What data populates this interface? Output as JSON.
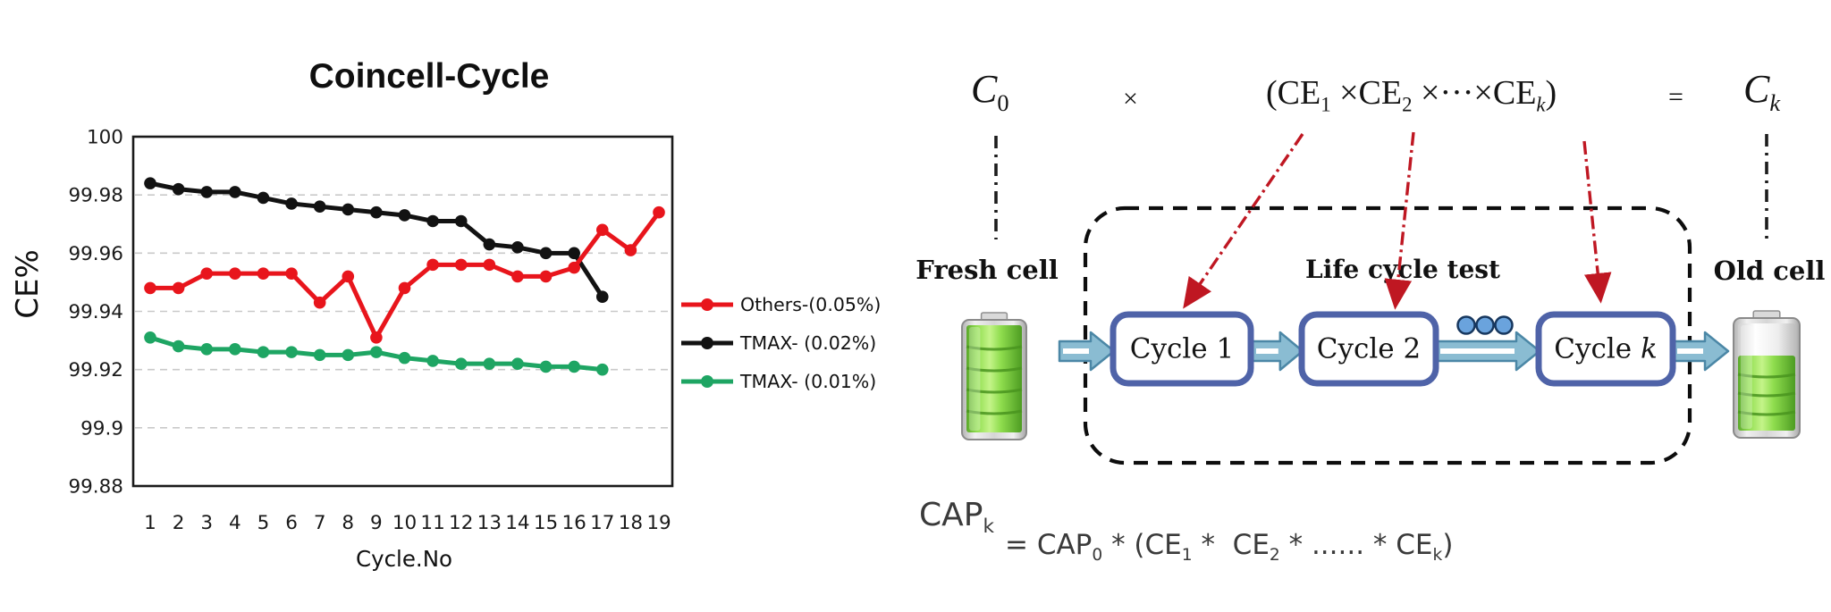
{
  "chart_data": {
    "type": "line",
    "title": "Coincell-Cycle",
    "xlabel": "Cycle.No",
    "ylabel": "CE%",
    "x": [
      1,
      2,
      3,
      4,
      5,
      6,
      7,
      8,
      9,
      10,
      11,
      12,
      13,
      14,
      15,
      16,
      17,
      18,
      19
    ],
    "ylim": [
      99.88,
      100
    ],
    "yticks": [
      100,
      99.98,
      99.96,
      99.94,
      99.92,
      99.9,
      99.88
    ],
    "ytick_labels": [
      "100",
      "99.98",
      "99.96",
      "99.94",
      "99.92",
      "99.9",
      "99.88"
    ],
    "grid": "horizontal-dashed",
    "legend_position": "right-center",
    "series": [
      {
        "name": "Others-(0.05%)",
        "color": "#e8151c",
        "marker": "circle",
        "values": [
          99.948,
          99.948,
          99.953,
          99.953,
          99.953,
          99.953,
          99.943,
          99.952,
          99.931,
          99.948,
          99.956,
          99.956,
          99.956,
          99.952,
          99.952,
          99.955,
          99.968,
          99.961,
          99.974
        ]
      },
      {
        "name": "TMAX-（0.02%）",
        "color": "#121212",
        "marker": "circle",
        "values": [
          99.984,
          99.982,
          99.981,
          99.981,
          99.979,
          99.977,
          99.976,
          99.975,
          99.974,
          99.973,
          99.971,
          99.971,
          99.963,
          99.962,
          99.96,
          99.96,
          99.945
        ]
      },
      {
        "name": "TMAX-（0.01%）",
        "color": "#1ea563",
        "marker": "circle",
        "values": [
          99.931,
          99.928,
          99.927,
          99.927,
          99.926,
          99.926,
          99.925,
          99.925,
          99.926,
          99.924,
          99.923,
          99.922,
          99.922,
          99.922,
          99.921,
          99.921,
          99.92
        ]
      }
    ]
  },
  "diagram": {
    "formula_top": {
      "c0": [
        {
          "t": "C",
          "i": true,
          "sub": "0"
        }
      ],
      "times": "×",
      "product": [
        {
          "t": "(CE",
          "sub": "1"
        },
        {
          "t": " ×CE",
          "sub": "2"
        },
        {
          "t": " ×···×CE",
          "sub": "k",
          "si": true
        },
        {
          "t": ")"
        }
      ],
      "equals": "=",
      "ck": [
        {
          "t": "C",
          "i": true,
          "sub": "k",
          "si": true
        }
      ]
    },
    "labels": {
      "fresh_cell": "Fresh cell",
      "old_cell": "Old cell",
      "life_cycle_test": "Life cycle test"
    },
    "cycle_boxes": [
      {
        "label": "Cycle 1"
      },
      {
        "label": "Cycle 2"
      },
      {
        "label": "Cycle ",
        "italic_suffix": "k"
      }
    ],
    "ellipsis_dots": 3,
    "formula_bottom": {
      "lhs": [
        {
          "t": "CAP",
          "sub": "k"
        }
      ],
      "rhs": [
        {
          "t": "= CAP",
          "sub": "0"
        },
        {
          "t": " * (CE",
          "sub": "1"
        },
        {
          "t": " *  CE",
          "sub": "2"
        },
        {
          "t": " * ...... * CE",
          "sub": "k"
        },
        {
          "t": ")"
        }
      ]
    },
    "colors": {
      "box_border": "#4f63a8",
      "block_arrow_fill": "#8abcd2",
      "block_arrow_stroke": "#4b87a6",
      "red_arrow": "#bf1722",
      "dashed_border": "#0d0d0d",
      "battery_green": "#7ed23f",
      "dot_fill": "#6aa3dd",
      "dot_stroke": "#17375e"
    }
  }
}
